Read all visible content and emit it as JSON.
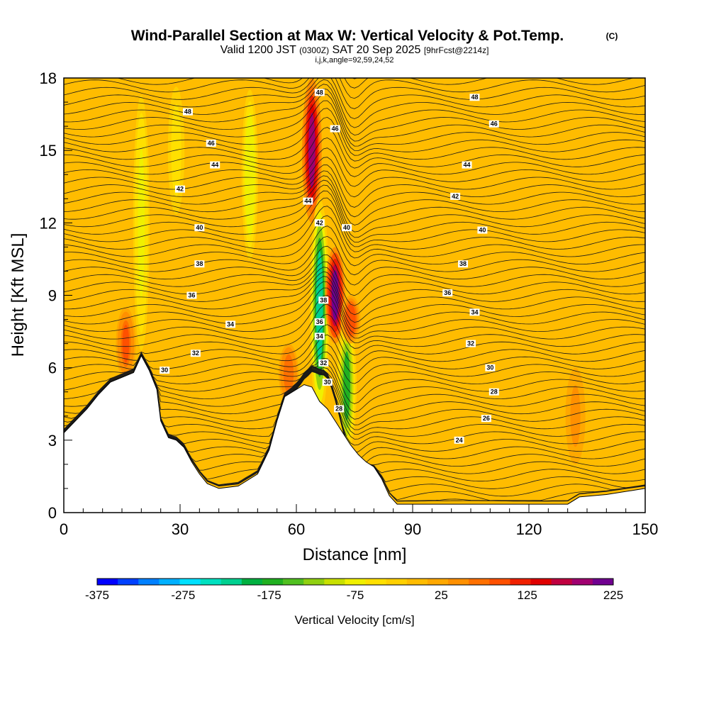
{
  "header": {
    "title": "Wind-Parallel Section at Max W: Vertical Velocity & Pot.Temp.",
    "copyright": "(C)",
    "valid_prefix": "Valid 1200 JST",
    "valid_z": "(0300Z)",
    "valid_date": "SAT 20 Sep 2025",
    "forecast": "[9hrFcst@2214z]",
    "indices": "i,j,k,angle=92,59,24,52"
  },
  "chart_data": {
    "type": "heatmap",
    "title": "Wind-Parallel Section at Max W: Vertical Velocity & Pot.Temp.",
    "xlabel": "Distance [nm]",
    "ylabel": "Height [Kft MSL]",
    "xlim": [
      0,
      150
    ],
    "ylim": [
      0,
      18
    ],
    "x_ticks": [
      0,
      30,
      60,
      90,
      120,
      150
    ],
    "y_ticks": [
      0,
      3,
      6,
      9,
      12,
      15,
      18
    ],
    "colorbar": {
      "label": "Vertical Velocity [cm/s]",
      "range": [
        -375,
        225
      ],
      "step": 25,
      "tick_labels": [
        "-375",
        "-275",
        "-175",
        "-75",
        "25",
        "125",
        "225"
      ],
      "tick_values": [
        -375,
        -275,
        -175,
        -75,
        25,
        125,
        225
      ],
      "colors": [
        "#0000ff",
        "#0040ff",
        "#0080ff",
        "#00b0ff",
        "#00e0ff",
        "#00e0c0",
        "#00d090",
        "#00b040",
        "#20b020",
        "#50c020",
        "#90d010",
        "#c8e000",
        "#f0f000",
        "#ffe000",
        "#ffd000",
        "#ffbc00",
        "#ffa800",
        "#ff9000",
        "#ff7000",
        "#ff5000",
        "#f02000",
        "#e00000",
        "#c00040",
        "#a00070",
        "#700090"
      ]
    },
    "terrain": {
      "distance_nm": [
        0,
        3,
        6,
        9,
        12,
        15,
        18,
        20,
        22,
        24,
        25,
        27,
        29,
        31,
        33,
        35,
        37,
        40,
        45,
        50,
        53,
        55,
        57,
        60,
        62,
        64,
        66,
        68,
        70,
        72,
        74,
        76,
        78,
        80,
        82,
        84,
        86,
        90,
        100,
        110,
        120,
        125,
        130,
        133,
        140,
        150
      ],
      "height_kft": [
        3.3,
        3.8,
        4.3,
        4.9,
        5.4,
        5.6,
        5.8,
        6.5,
        5.9,
        5.1,
        3.8,
        3.1,
        3.0,
        2.7,
        2.1,
        1.6,
        1.2,
        1.0,
        1.1,
        1.6,
        2.6,
        3.8,
        4.8,
        5.1,
        5.3,
        5.2,
        4.6,
        4.3,
        3.8,
        3.3,
        2.8,
        2.4,
        2.1,
        1.9,
        1.4,
        0.7,
        0.35,
        0.35,
        0.35,
        0.35,
        0.35,
        0.35,
        0.35,
        0.65,
        0.75,
        1.0
      ]
    },
    "velocity_features": [
      {
        "distance_nm": 20,
        "height_range_kft": [
          6,
          18
        ],
        "peak_cm_s": -60
      },
      {
        "distance_nm": 29,
        "height_range_kft": [
          12,
          18
        ],
        "peak_cm_s": -45
      },
      {
        "distance_nm": 16,
        "height_range_kft": [
          5.5,
          8.5
        ],
        "peak_cm_s": 100
      },
      {
        "distance_nm": 48,
        "height_range_kft": [
          10,
          18
        ],
        "peak_cm_s": -70
      },
      {
        "distance_nm": 58,
        "height_range_kft": [
          4.5,
          7
        ],
        "peak_cm_s": 90
      },
      {
        "distance_nm": 64,
        "height_range_kft": [
          12,
          18
        ],
        "peak_cm_s": 200
      },
      {
        "distance_nm": 66,
        "height_range_kft": [
          4,
          13
        ],
        "peak_cm_s": -220
      },
      {
        "distance_nm": 70,
        "height_range_kft": [
          7,
          11
        ],
        "peak_cm_s": 225
      },
      {
        "distance_nm": 73,
        "height_range_kft": [
          2.5,
          8
        ],
        "peak_cm_s": -160
      },
      {
        "distance_nm": 74,
        "height_range_kft": [
          7,
          9
        ],
        "peak_cm_s": 120
      },
      {
        "distance_nm": 132,
        "height_range_kft": [
          2,
          6
        ],
        "peak_cm_s": 60
      }
    ],
    "isentrope_labels": [
      {
        "text": "48",
        "x": 32,
        "y": 16.6
      },
      {
        "text": "46",
        "x": 38,
        "y": 15.3
      },
      {
        "text": "44",
        "x": 39,
        "y": 14.4
      },
      {
        "text": "42",
        "x": 30,
        "y": 13.4
      },
      {
        "text": "40",
        "x": 35,
        "y": 11.8
      },
      {
        "text": "38",
        "x": 35,
        "y": 10.3
      },
      {
        "text": "36",
        "x": 33,
        "y": 9.0
      },
      {
        "text": "34",
        "x": 43,
        "y": 7.8
      },
      {
        "text": "32",
        "x": 34,
        "y": 6.6
      },
      {
        "text": "30",
        "x": 26,
        "y": 5.9
      },
      {
        "text": "48",
        "x": 66,
        "y": 17.4
      },
      {
        "text": "46",
        "x": 70,
        "y": 15.9
      },
      {
        "text": "44",
        "x": 63,
        "y": 12.9
      },
      {
        "text": "42",
        "x": 66,
        "y": 12.0
      },
      {
        "text": "40",
        "x": 73,
        "y": 11.8
      },
      {
        "text": "38",
        "x": 67,
        "y": 8.8
      },
      {
        "text": "36",
        "x": 66,
        "y": 7.9
      },
      {
        "text": "34",
        "x": 66,
        "y": 7.3
      },
      {
        "text": "32",
        "x": 67,
        "y": 6.2
      },
      {
        "text": "30",
        "x": 68,
        "y": 5.4
      },
      {
        "text": "28",
        "x": 71,
        "y": 4.3
      },
      {
        "text": "48",
        "x": 106,
        "y": 17.2
      },
      {
        "text": "46",
        "x": 111,
        "y": 16.1
      },
      {
        "text": "44",
        "x": 104,
        "y": 14.4
      },
      {
        "text": "42",
        "x": 101,
        "y": 13.1
      },
      {
        "text": "40",
        "x": 108,
        "y": 11.7
      },
      {
        "text": "38",
        "x": 103,
        "y": 10.3
      },
      {
        "text": "36",
        "x": 99,
        "y": 9.1
      },
      {
        "text": "34",
        "x": 106,
        "y": 8.3
      },
      {
        "text": "32",
        "x": 105,
        "y": 7.0
      },
      {
        "text": "30",
        "x": 110,
        "y": 6.0
      },
      {
        "text": "28",
        "x": 111,
        "y": 5.0
      },
      {
        "text": "26",
        "x": 109,
        "y": 3.9
      },
      {
        "text": "24",
        "x": 102,
        "y": 3.0
      }
    ]
  }
}
